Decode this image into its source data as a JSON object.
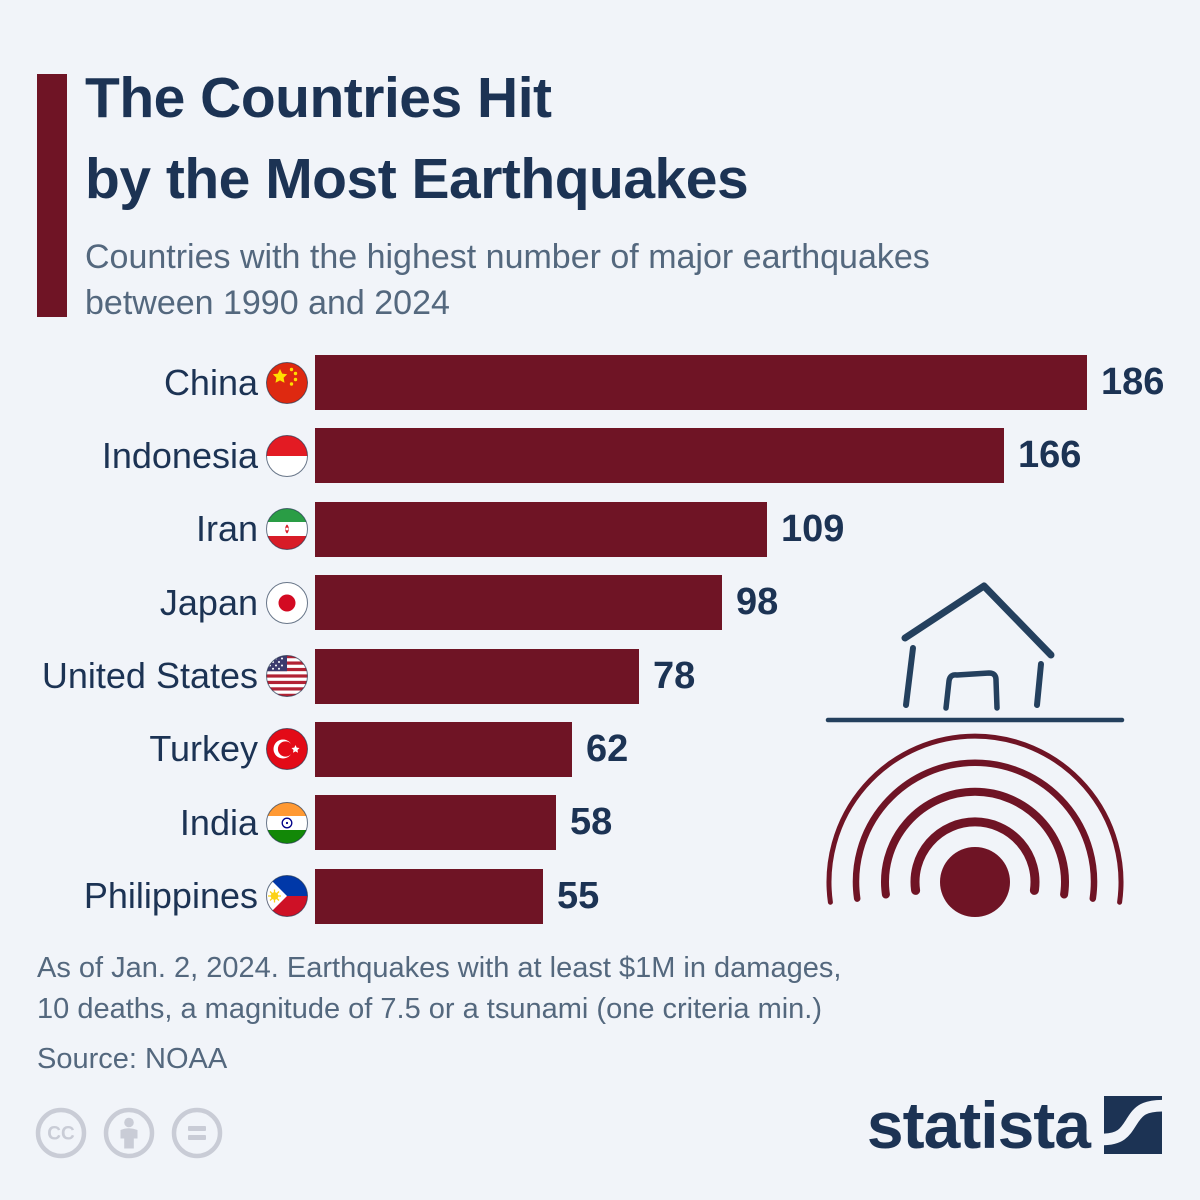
{
  "header": {
    "title_line1": "The Countries Hit",
    "title_line2": "by the Most Earthquakes",
    "subtitle_line1": "Countries with the highest number of major earthquakes",
    "subtitle_line2": "between 1990 and 2024"
  },
  "chart_data": {
    "type": "bar",
    "orientation": "horizontal",
    "title": "The Countries Hit by the Most Earthquakes",
    "subtitle": "Countries with the highest number of major earthquakes between 1990 and 2024",
    "categories": [
      "China",
      "Indonesia",
      "Iran",
      "Japan",
      "United States",
      "Turkey",
      "India",
      "Philippines"
    ],
    "values": [
      186,
      166,
      109,
      98,
      78,
      62,
      58,
      55
    ],
    "xlim": [
      0,
      186
    ],
    "grid": false,
    "legend": "none",
    "bar_color": "#6F1425",
    "flag_icons": [
      "china-flag-icon",
      "indonesia-flag-icon",
      "iran-flag-icon",
      "japan-flag-icon",
      "united-states-flag-icon",
      "turkey-flag-icon",
      "india-flag-icon",
      "philippines-flag-icon"
    ]
  },
  "footnote": {
    "line1": "As of Jan. 2, 2024. Earthquakes with at least $1M in damages,",
    "line2": "10 deaths, a magnitude of 7.5 or a tsunami (one criteria min.)",
    "source": "Source: NOAA"
  },
  "branding": {
    "logo_text": "statista"
  },
  "colors": {
    "background": "#f1f4f9",
    "bar_maroon": "#6F1425",
    "navy_text": "#1c3354",
    "slate_text": "#54687e",
    "house_navy": "#24405e",
    "cc_gray": "#c9ccd6"
  }
}
